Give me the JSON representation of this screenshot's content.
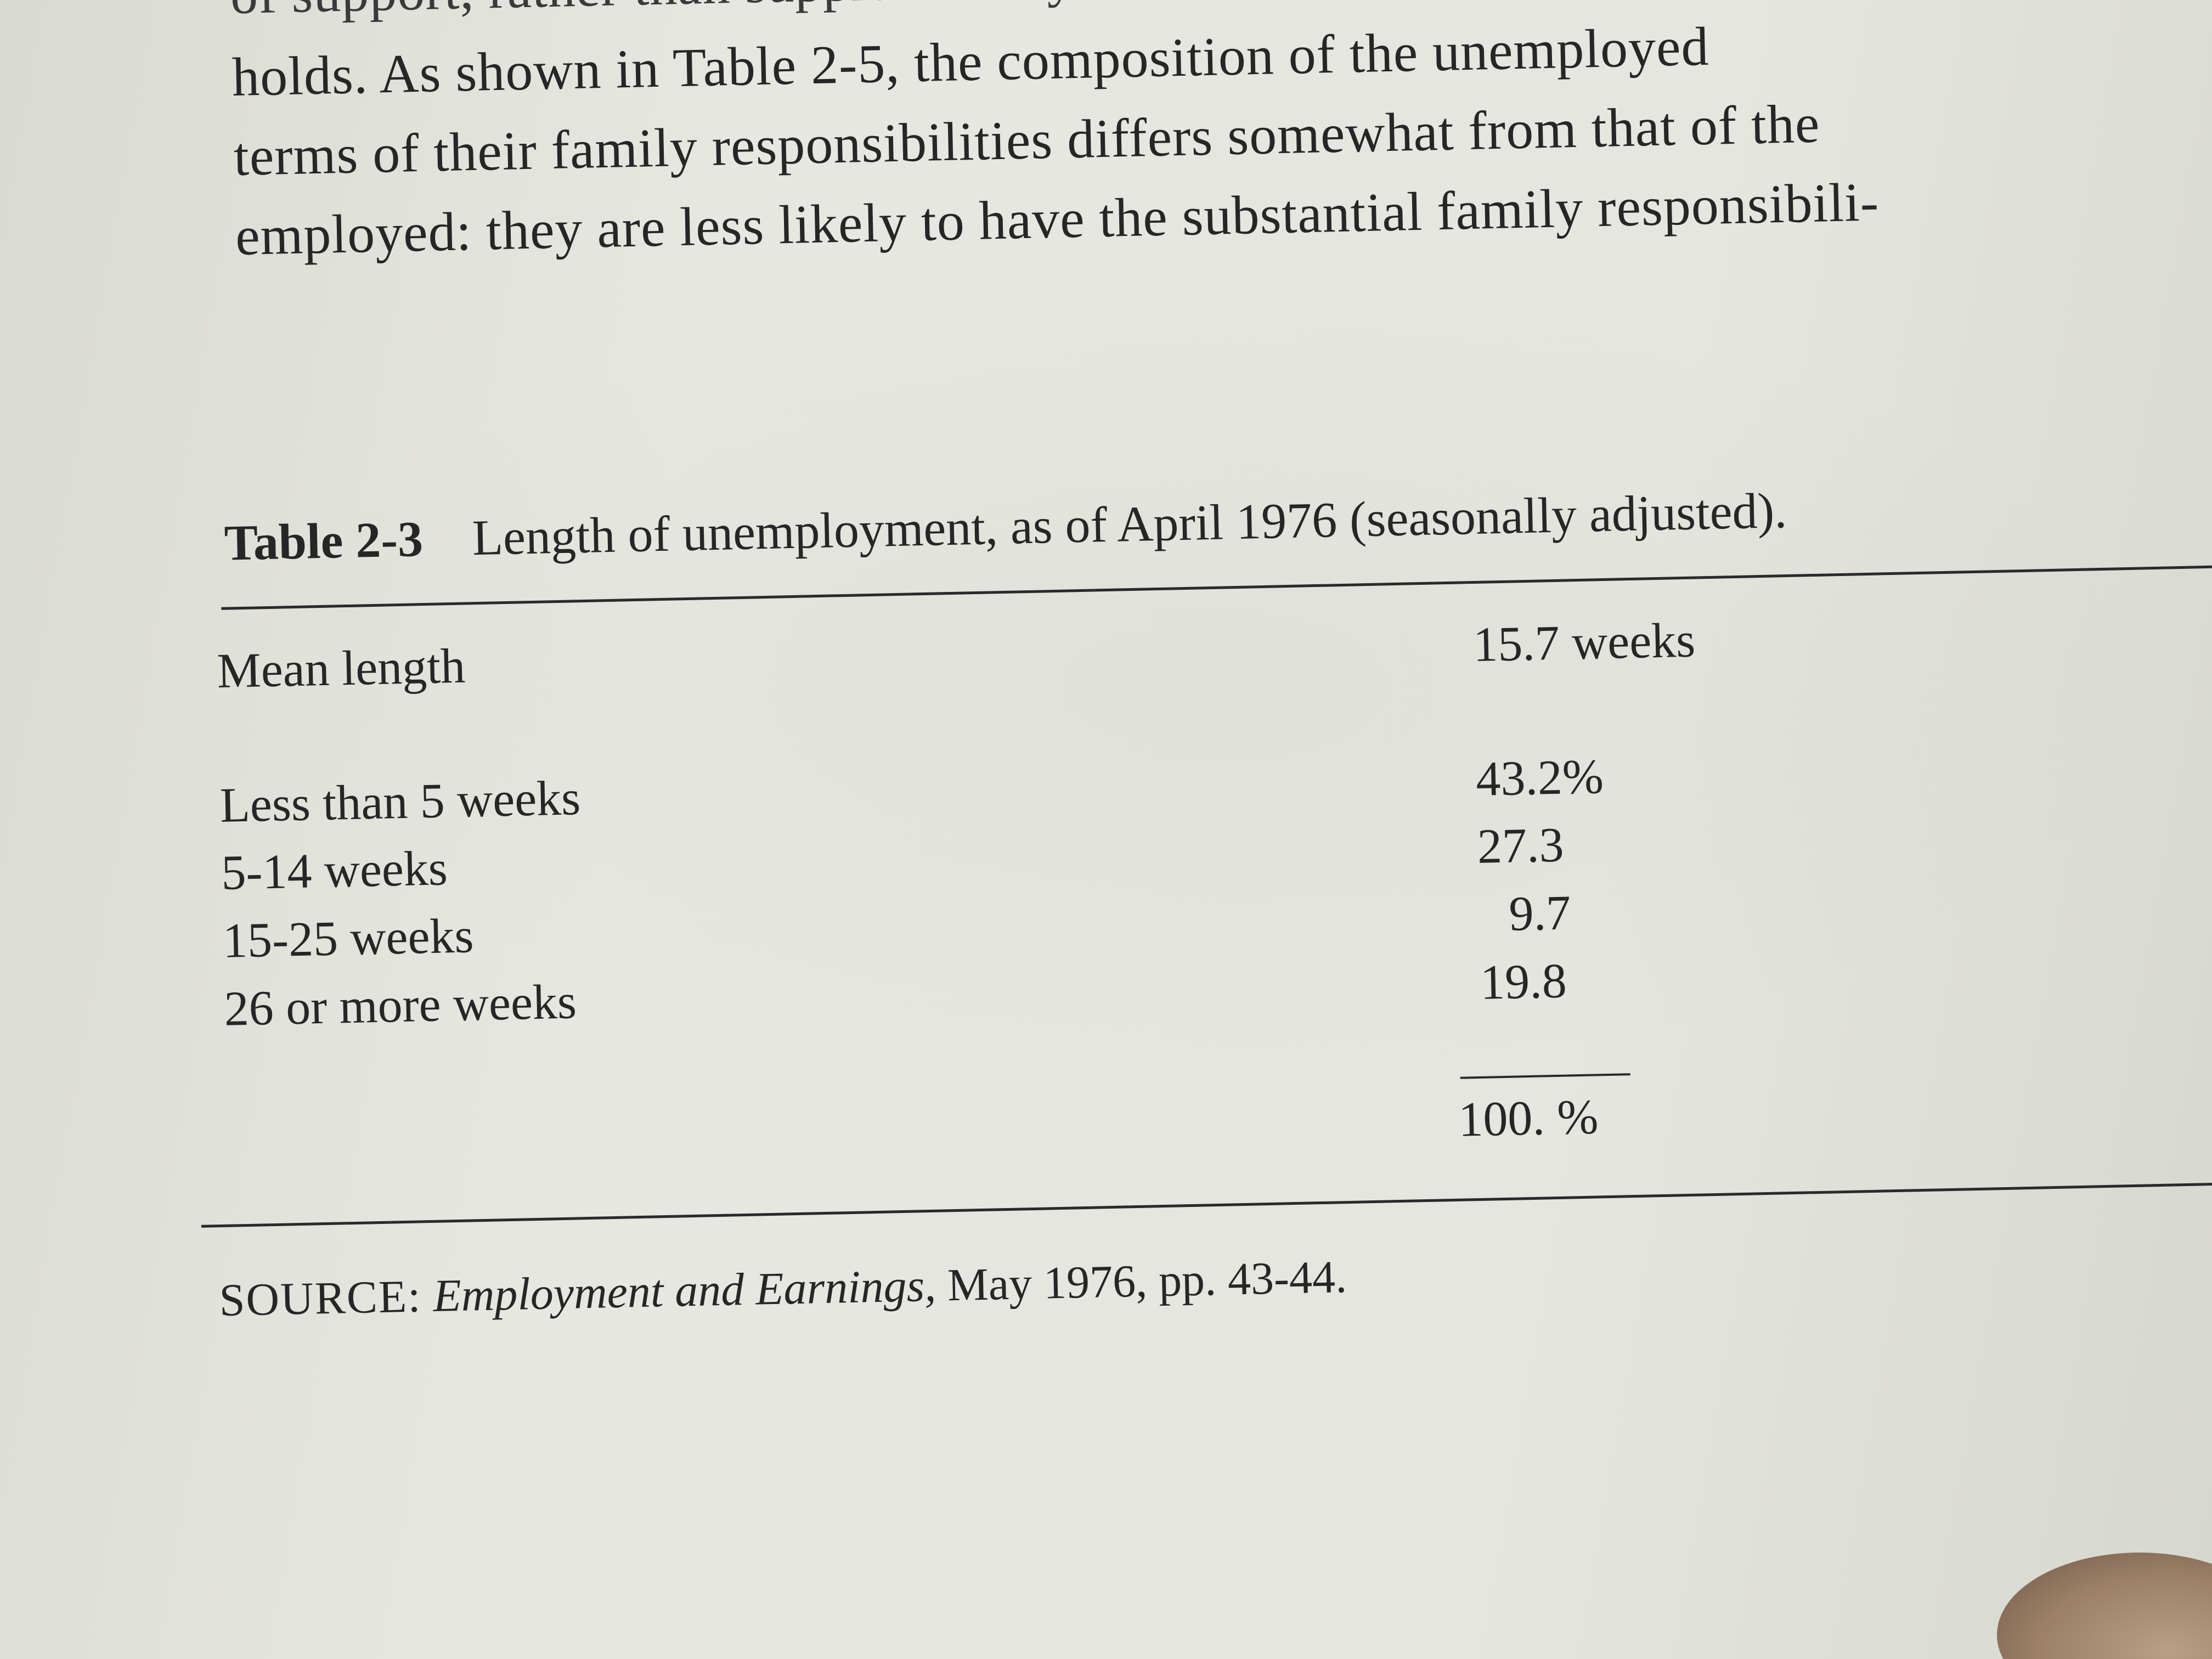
{
  "intro_lines": [
    "of support, rather than supplementary",
    "holds. As shown in Table 2-5, the composition of the unemployed",
    "terms of their family responsibilities differs somewhat from that of the",
    "employed: they are less likely to have the substantial family responsibili-"
  ],
  "table": {
    "label": "Table 2-3",
    "title": "Length of unemployment, as of April 1976 (seasonally adjusted).",
    "mean": {
      "label": "Mean length",
      "value": "15.7 weeks"
    },
    "rows": [
      {
        "label": "Less than 5 weeks",
        "value": "43.2%"
      },
      {
        "label": "5-14 weeks",
        "value": "27.3"
      },
      {
        "label": "15-25 weeks",
        "value": "9.7"
      },
      {
        "label": "26 or more weeks",
        "value": "19.8"
      }
    ],
    "total": "100. %"
  },
  "source": {
    "label": "SOURCE:",
    "publication": "Employment and Earnings,",
    "details": "May 1976, pp. 43-44."
  }
}
